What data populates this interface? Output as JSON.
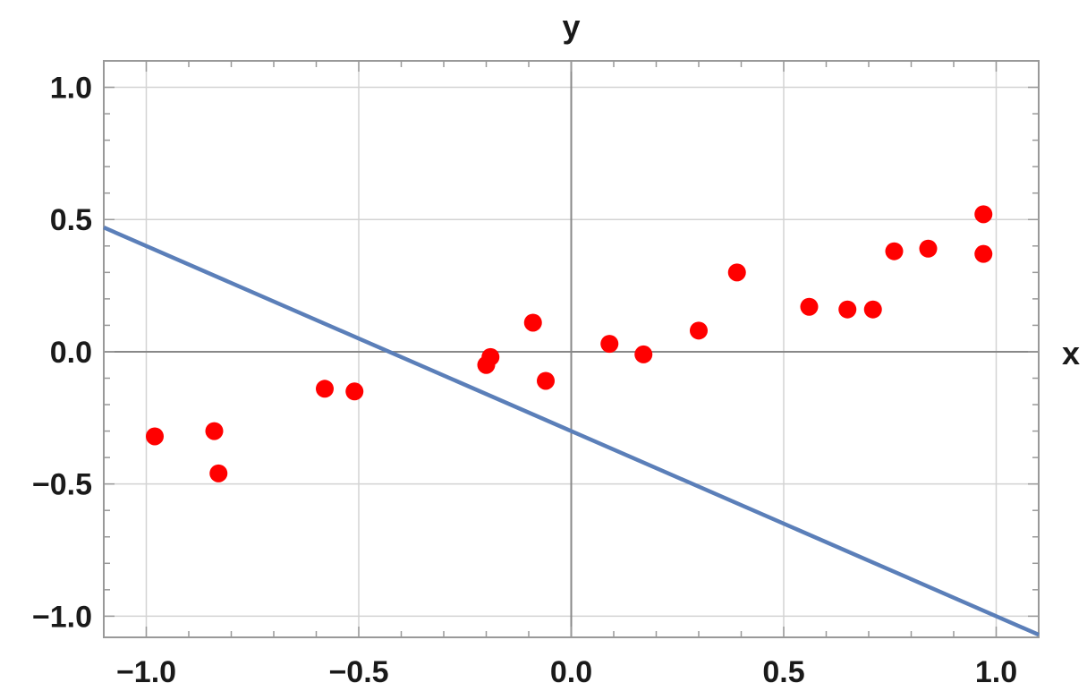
{
  "chart_data": {
    "type": "scatter",
    "xlabel": "x",
    "ylabel": "y",
    "xlim": [
      -1.1,
      1.1
    ],
    "ylim": [
      -1.08,
      1.1
    ],
    "x_ticks": [
      -1.0,
      -0.5,
      0.0,
      0.5,
      1.0
    ],
    "x_tick_labels": [
      "−1.0",
      "−0.5",
      "0.0",
      "0.5",
      "1.0"
    ],
    "y_ticks": [
      -1.0,
      -0.5,
      0.0,
      0.5,
      1.0
    ],
    "y_tick_labels": [
      "−1.0",
      "−0.5",
      "0.0",
      "0.5",
      "1.0"
    ],
    "grid": true,
    "colors": {
      "points": "#ff0000",
      "line": "#5b7fb9",
      "grid": "#d3d3d3",
      "axis": "#888888",
      "frame": "#999999"
    },
    "points": [
      {
        "x": -0.98,
        "y": -0.32
      },
      {
        "x": -0.84,
        "y": -0.3
      },
      {
        "x": -0.83,
        "y": -0.46
      },
      {
        "x": -0.58,
        "y": -0.14
      },
      {
        "x": -0.51,
        "y": -0.15
      },
      {
        "x": -0.2,
        "y": -0.05
      },
      {
        "x": -0.19,
        "y": -0.02
      },
      {
        "x": -0.09,
        "y": 0.11
      },
      {
        "x": -0.06,
        "y": -0.11
      },
      {
        "x": 0.09,
        "y": 0.03
      },
      {
        "x": 0.17,
        "y": -0.01
      },
      {
        "x": 0.3,
        "y": 0.08
      },
      {
        "x": 0.39,
        "y": 0.3
      },
      {
        "x": 0.56,
        "y": 0.17
      },
      {
        "x": 0.65,
        "y": 0.16
      },
      {
        "x": 0.71,
        "y": 0.16
      },
      {
        "x": 0.76,
        "y": 0.38
      },
      {
        "x": 0.84,
        "y": 0.39
      },
      {
        "x": 0.97,
        "y": 0.52
      },
      {
        "x": 0.97,
        "y": 0.37
      }
    ],
    "line": {
      "x": [
        -1.1,
        1.1
      ],
      "y": [
        0.47,
        -1.07
      ]
    }
  }
}
